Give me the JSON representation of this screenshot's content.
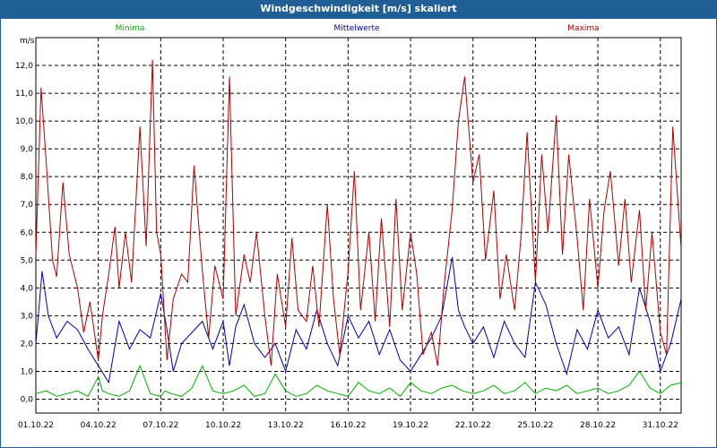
{
  "window": {
    "title": "Windgeschwindigkeit [m/s] skaliert"
  },
  "colors": {
    "minima": "#00b000",
    "mittel": "#0000b0",
    "maxima": "#b00000",
    "grid": "#000000"
  },
  "chart_data": {
    "type": "line",
    "title": "Windgeschwindigkeit [m/s] skaliert",
    "ylabel": "m/s",
    "xlabel": "",
    "ylim": [
      -0.5,
      13.0
    ],
    "yticks": [
      "0,0",
      "1,0",
      "2,0",
      "3,0",
      "4,0",
      "5,0",
      "6,0",
      "7,0",
      "8,0",
      "9,0",
      "10,0",
      "11,0",
      "12,0"
    ],
    "ytick_values": [
      0,
      1,
      2,
      3,
      4,
      5,
      6,
      7,
      8,
      9,
      10,
      11,
      12
    ],
    "xlim": [
      0,
      31
    ],
    "xtick_values": [
      0,
      3,
      6,
      9,
      12,
      15,
      18,
      21,
      24,
      27,
      30
    ],
    "xticks": [
      "01.10.22",
      "04.10.22",
      "07.10.22",
      "10.10.22",
      "13.10.22",
      "16.10.22",
      "19.10.22",
      "22.10.22",
      "25.10.22",
      "28.10.22",
      "31.10.22"
    ],
    "legend": [
      "Minima",
      "Mittelwerte",
      "Maxima"
    ],
    "series": [
      {
        "name": "Minima",
        "x": [
          0,
          0.5,
          1,
          1.5,
          2,
          2.5,
          3,
          3.2,
          3.5,
          4,
          4.5,
          5,
          5.5,
          6,
          6.2,
          6.5,
          7,
          7.5,
          8,
          8.5,
          9,
          9.5,
          10,
          10.5,
          11,
          11.5,
          12,
          12.5,
          13,
          13.5,
          14,
          14.5,
          15,
          15.5,
          16,
          16.5,
          17,
          17.5,
          18,
          18.5,
          19,
          19.5,
          20,
          20.5,
          21,
          21.5,
          22,
          22.5,
          23,
          23.5,
          24,
          24.5,
          25,
          25.5,
          26,
          26.5,
          27,
          27.5,
          28,
          28.5,
          29,
          29.5,
          30,
          30.5,
          31
        ],
        "values": [
          0.2,
          0.3,
          0.1,
          0.2,
          0.3,
          0.1,
          0.8,
          0.3,
          0.2,
          0.1,
          0.3,
          1.2,
          0.2,
          0.1,
          0.3,
          0.2,
          0.1,
          0.4,
          1.2,
          0.3,
          0.2,
          0.3,
          0.5,
          0.1,
          0.2,
          0.9,
          0.3,
          0.1,
          0.2,
          0.5,
          0.3,
          0.2,
          0.1,
          0.6,
          0.3,
          0.2,
          0.4,
          0.1,
          0.6,
          0.3,
          0.2,
          0.4,
          0.5,
          0.3,
          0.2,
          0.3,
          0.5,
          0.2,
          0.3,
          0.6,
          0.2,
          0.4,
          0.3,
          0.5,
          0.2,
          0.3,
          0.4,
          0.2,
          0.3,
          0.5,
          1.0,
          0.4,
          0.2,
          0.5,
          0.6
        ]
      },
      {
        "name": "Mittelwerte",
        "x": [
          0,
          0.3,
          0.6,
          1,
          1.5,
          2,
          2.5,
          3,
          3.5,
          4,
          4.5,
          5,
          5.5,
          6,
          6.3,
          6.6,
          7,
          7.5,
          8,
          8.5,
          9,
          9.3,
          9.6,
          10,
          10.5,
          11,
          11.5,
          12,
          12.5,
          13,
          13.5,
          14,
          14.5,
          15,
          15.5,
          16,
          16.5,
          17,
          17.5,
          18,
          18.5,
          19,
          19.5,
          20,
          20.3,
          20.6,
          21,
          21.5,
          22,
          22.5,
          23,
          23.5,
          24,
          24.5,
          25,
          25.5,
          26,
          26.5,
          27,
          27.5,
          28,
          28.5,
          29,
          29.5,
          30,
          30.5,
          31
        ],
        "values": [
          2.0,
          4.6,
          3.0,
          2.2,
          2.8,
          2.5,
          1.8,
          1.2,
          0.6,
          2.8,
          1.8,
          2.5,
          2.2,
          3.8,
          2.5,
          1.0,
          2.0,
          2.4,
          2.8,
          1.8,
          2.8,
          1.2,
          2.6,
          3.4,
          2.0,
          1.5,
          2.0,
          1.0,
          2.5,
          1.8,
          3.2,
          2.0,
          1.2,
          3.0,
          2.2,
          2.8,
          1.6,
          2.5,
          1.4,
          1.0,
          1.6,
          2.2,
          3.0,
          5.1,
          3.2,
          2.6,
          2.0,
          2.6,
          1.5,
          2.8,
          2.0,
          1.5,
          4.2,
          3.4,
          2.0,
          0.9,
          2.5,
          1.8,
          3.2,
          2.2,
          2.6,
          1.6,
          4.0,
          2.8,
          1.0,
          2.0,
          3.6
        ]
      },
      {
        "name": "Maxima",
        "x": [
          0,
          0.25,
          0.5,
          0.8,
          1,
          1.3,
          1.6,
          2,
          2.3,
          2.6,
          3,
          3.2,
          3.5,
          3.8,
          4,
          4.3,
          4.6,
          5,
          5.3,
          5.6,
          5.8,
          6,
          6.3,
          6.6,
          7,
          7.3,
          7.6,
          8,
          8.3,
          8.6,
          9,
          9.3,
          9.6,
          10,
          10.3,
          10.6,
          11,
          11.3,
          11.6,
          12,
          12.3,
          12.6,
          13,
          13.3,
          13.6,
          14,
          14.3,
          14.6,
          15,
          15.3,
          15.6,
          16,
          16.3,
          16.6,
          17,
          17.3,
          17.6,
          18,
          18.3,
          18.6,
          19,
          19.3,
          19.6,
          20,
          20.3,
          20.6,
          21,
          21.3,
          21.6,
          22,
          22.3,
          22.6,
          23,
          23.3,
          23.6,
          24,
          24.3,
          24.6,
          25,
          25.3,
          25.6,
          26,
          26.3,
          26.6,
          27,
          27.3,
          27.6,
          28,
          28.3,
          28.6,
          29,
          29.3,
          29.6,
          30,
          30.3,
          30.6,
          31
        ],
        "values": [
          5.2,
          11.2,
          8.5,
          5.0,
          4.4,
          7.8,
          5.2,
          4.0,
          2.4,
          3.5,
          1.4,
          3.0,
          4.5,
          6.2,
          4.0,
          6.0,
          4.2,
          9.8,
          5.5,
          12.2,
          6.0,
          5.2,
          1.4,
          3.6,
          4.5,
          4.2,
          8.4,
          4.6,
          2.2,
          4.8,
          3.6,
          11.6,
          3.0,
          5.2,
          4.2,
          6.0,
          3.0,
          1.2,
          4.5,
          2.6,
          5.8,
          3.2,
          2.8,
          4.8,
          2.6,
          7.0,
          3.6,
          1.6,
          4.6,
          8.2,
          3.2,
          6.0,
          2.8,
          6.5,
          2.6,
          7.2,
          3.2,
          6.0,
          4.5,
          1.6,
          2.4,
          1.2,
          4.0,
          6.8,
          10.0,
          11.6,
          7.8,
          8.8,
          5.0,
          7.5,
          3.6,
          5.2,
          3.2,
          5.8,
          9.6,
          4.2,
          8.8,
          6.0,
          10.2,
          5.2,
          8.8,
          5.8,
          3.2,
          7.2,
          4.0,
          6.8,
          8.2,
          4.8,
          7.2,
          4.2,
          6.8,
          3.2,
          6.0,
          2.4,
          1.6,
          9.8,
          5.4
        ]
      }
    ]
  }
}
